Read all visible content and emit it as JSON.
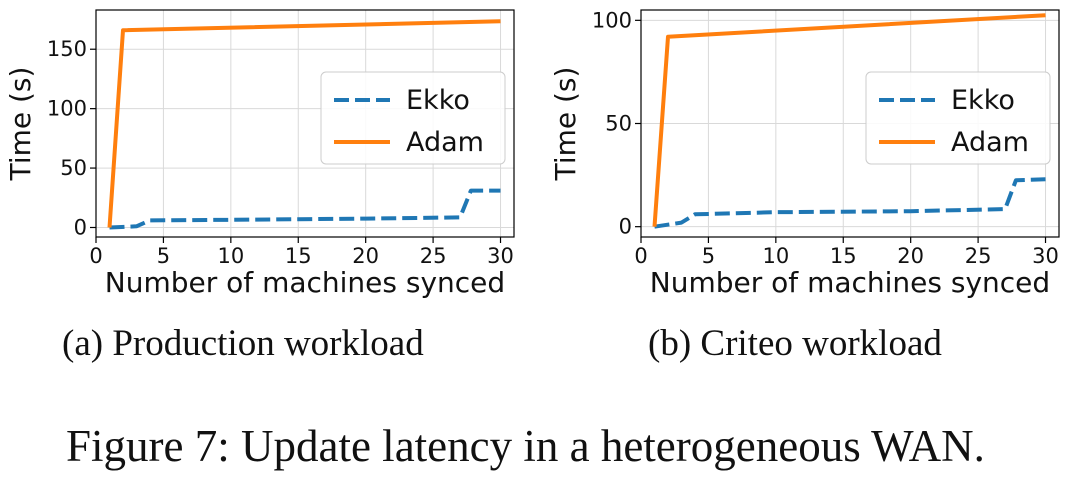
{
  "chart_data": [
    {
      "type": "line",
      "xlabel": "Number of machines synced",
      "ylabel": "Time (s)",
      "xlim": [
        0,
        31
      ],
      "ylim": [
        -8,
        183
      ],
      "xticks": [
        0,
        5,
        10,
        15,
        20,
        25,
        30
      ],
      "yticks": [
        0,
        50,
        100,
        150
      ],
      "grid": true,
      "legend_position": "center-right",
      "series": [
        {
          "name": "Ekko",
          "style": "dashed",
          "color": "#1f77b4",
          "x": [
            1,
            3,
            4,
            10,
            20,
            27,
            27.8,
            30
          ],
          "y": [
            0,
            1,
            6,
            6.5,
            7.5,
            8.5,
            31,
            31
          ]
        },
        {
          "name": "Adam",
          "style": "solid",
          "color": "#ff7f0e",
          "x": [
            1,
            2,
            30
          ],
          "y": [
            0,
            166,
            173.5
          ]
        }
      ]
    },
    {
      "type": "line",
      "xlabel": "Number of machines synced",
      "ylabel": "Time (s)",
      "xlim": [
        0,
        31
      ],
      "ylim": [
        -5,
        105
      ],
      "xticks": [
        0,
        5,
        10,
        15,
        20,
        25,
        30
      ],
      "yticks": [
        0,
        50,
        100
      ],
      "grid": true,
      "legend_position": "center-right",
      "series": [
        {
          "name": "Ekko",
          "style": "dashed",
          "color": "#1f77b4",
          "x": [
            1,
            3,
            4,
            10,
            20,
            27,
            27.8,
            30
          ],
          "y": [
            0,
            2,
            6,
            7,
            7.5,
            8.5,
            22.5,
            23
          ]
        },
        {
          "name": "Adam",
          "style": "solid",
          "color": "#ff7f0e",
          "x": [
            1,
            2,
            30
          ],
          "y": [
            0,
            92,
            102.5
          ]
        }
      ]
    }
  ],
  "subcaptions": {
    "a": "(a) Production workload",
    "b": "(b) Criteo workload"
  },
  "figure_caption": "Figure 7: Update latency in a heterogeneous WAN."
}
